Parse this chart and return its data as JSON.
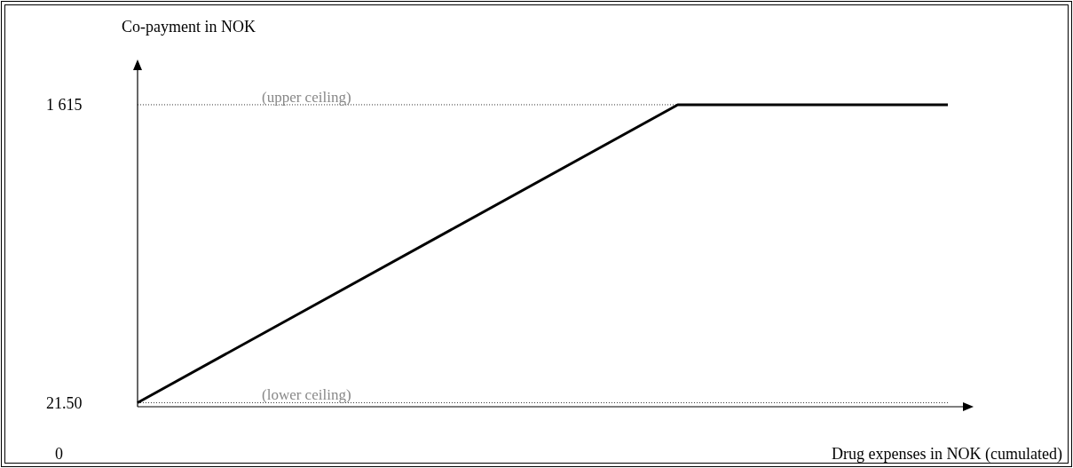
{
  "chart_data": {
    "type": "line",
    "ylabel": "Co-payment in NOK",
    "xlabel": "Drug expenses in NOK (cumulated)",
    "categories": [
      null,
      null,
      null,
      null
    ],
    "ylim": [
      0,
      1800
    ],
    "yticks": [
      {
        "value": 21.5,
        "label": "21.50"
      },
      {
        "value": 1615,
        "label": "1 615"
      }
    ],
    "tick_labels": "y",
    "series": [
      {
        "color": "#000000",
        "values": [
          21.5,
          null,
          1615,
          1615
        ]
      }
    ],
    "ref_lines": [
      {
        "axis": "y",
        "value": 1615,
        "label": "(upper ceiling)",
        "color": "#000000",
        "line_style": "dotted"
      },
      {
        "axis": "y",
        "value": 21.5,
        "label": "(lower ceiling)",
        "color": "#000000",
        "line_style": "dotted"
      }
    ],
    "annotations": [
      "0"
    ],
    "line_style": "solid",
    "marker": "none",
    "grid": false
  }
}
